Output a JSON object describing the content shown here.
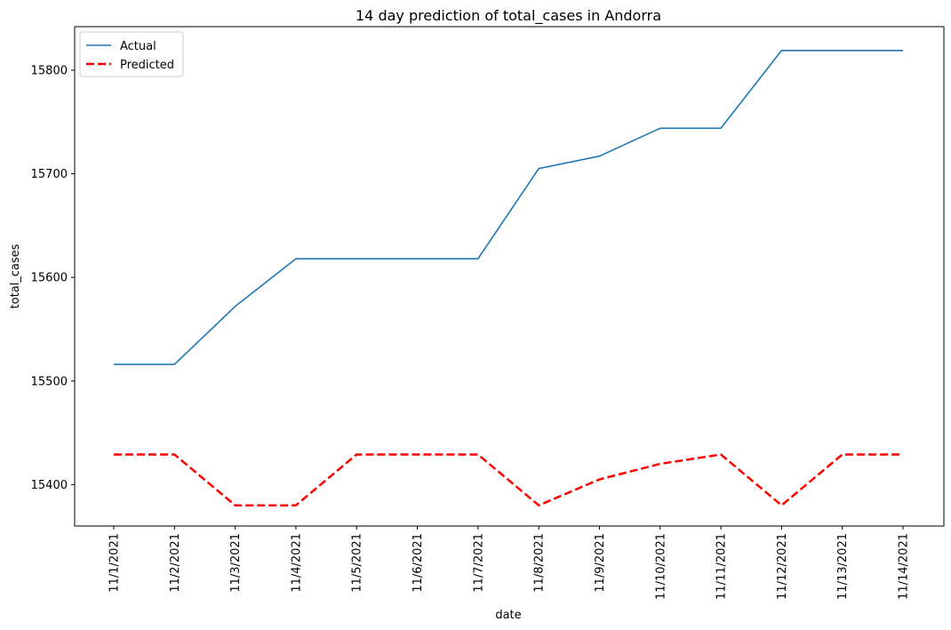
{
  "chart_data": {
    "type": "line",
    "title": "14 day prediction of total_cases in Andorra",
    "xlabel": "date",
    "ylabel": "total_cases",
    "x": [
      "11/1/2021",
      "11/2/2021",
      "11/3/2021",
      "11/4/2021",
      "11/5/2021",
      "11/6/2021",
      "11/7/2021",
      "11/8/2021",
      "11/9/2021",
      "11/10/2021",
      "11/11/2021",
      "11/12/2021",
      "11/13/2021",
      "11/14/2021"
    ],
    "ylim": [
      15360,
      15842
    ],
    "yticks": [
      15400,
      15500,
      15600,
      15700,
      15800
    ],
    "ytick_labels": [
      "15400",
      "15500",
      "15600",
      "15700",
      "15800"
    ],
    "grid": false,
    "legend": "top-left",
    "series": [
      {
        "name": "Actual",
        "color": "#1f77b4",
        "style": "solid",
        "values": [
          15516,
          15516,
          15572,
          15618,
          15618,
          15618,
          15618,
          15705,
          15717,
          15744,
          15744,
          15819,
          15819,
          15819
        ]
      },
      {
        "name": "Predicted",
        "color": "#ff0000",
        "style": "dashed",
        "values": [
          15429,
          15429,
          15380,
          15380,
          15429,
          15429,
          15429,
          15380,
          15405,
          15420,
          15429,
          15380,
          15429,
          15429
        ]
      }
    ]
  }
}
